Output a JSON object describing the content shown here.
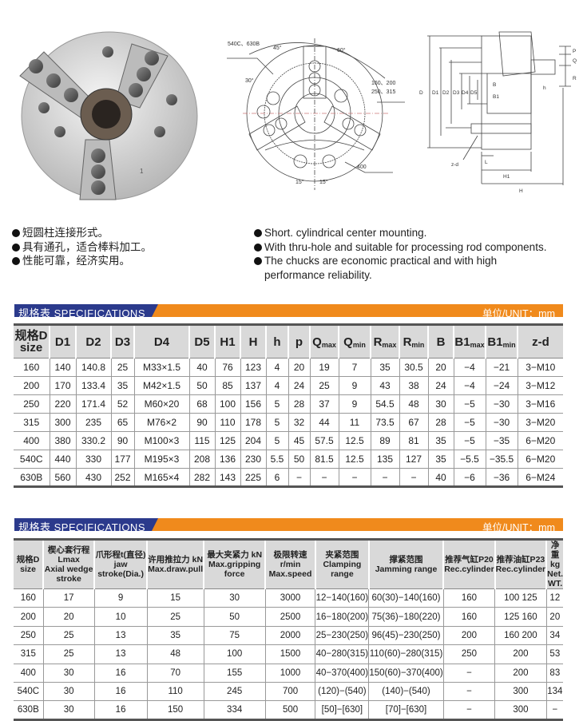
{
  "photo": {
    "engraving": "1"
  },
  "front_drawing": {
    "labels": [
      "540C、630B",
      "45°",
      "60°",
      "30°",
      "160、200",
      "250、315",
      "400",
      "15°",
      "15°"
    ]
  },
  "side_drawing": {
    "labels": [
      "D",
      "D1",
      "D2",
      "D3",
      "D4",
      "D5",
      "B",
      "B1",
      "P",
      "Q",
      "R",
      "h",
      "L",
      "z-d",
      "H1",
      "H"
    ]
  },
  "features_cn": [
    "短圆柱连接形式。",
    "具有通孔，适合棒料加工。",
    "性能可靠，经济实用。"
  ],
  "features_en": [
    "Short. cylindrical center mounting.",
    "With thru-hole and suitable for processing rod components.",
    "The chucks are economic practical and with high",
    "performance reliability."
  ],
  "section1": {
    "title": "规格表  SPECIFICATIONS",
    "unit": "单位/UNIT：mm",
    "headers": [
      {
        "main": "规格D",
        "second": "size"
      },
      {
        "main": "D1"
      },
      {
        "main": "D2"
      },
      {
        "main": "D3"
      },
      {
        "main": "D4"
      },
      {
        "main": "D5"
      },
      {
        "main": "H1"
      },
      {
        "main": "H"
      },
      {
        "main": "h"
      },
      {
        "main": "p"
      },
      {
        "main": "Q",
        "sub": "max"
      },
      {
        "main": "Q",
        "sub": "min"
      },
      {
        "main": "R",
        "sub": "max"
      },
      {
        "main": "R",
        "sub": "min"
      },
      {
        "main": "B"
      },
      {
        "main": "B1",
        "sub": "max"
      },
      {
        "main": "B1",
        "sub": "min"
      },
      {
        "main": "z-d"
      }
    ],
    "rows": [
      [
        "160",
        "140",
        "140.8",
        "25",
        "M33×1.5",
        "40",
        "76",
        "123",
        "4",
        "20",
        "19",
        "7",
        "35",
        "30.5",
        "20",
        "−4",
        "−21",
        "3−M10"
      ],
      [
        "200",
        "170",
        "133.4",
        "35",
        "M42×1.5",
        "50",
        "85",
        "137",
        "4",
        "24",
        "25",
        "9",
        "43",
        "38",
        "24",
        "−4",
        "−24",
        "3−M12"
      ],
      [
        "250",
        "220",
        "171.4",
        "52",
        "M60×20",
        "68",
        "100",
        "156",
        "5",
        "28",
        "37",
        "9",
        "54.5",
        "48",
        "30",
        "−5",
        "−30",
        "3−M16"
      ],
      [
        "315",
        "300",
        "235",
        "65",
        "M76×2",
        "90",
        "110",
        "178",
        "5",
        "32",
        "44",
        "11",
        "73.5",
        "67",
        "28",
        "−5",
        "−30",
        "3−M20"
      ],
      [
        "400",
        "380",
        "330.2",
        "90",
        "M100×3",
        "115",
        "125",
        "204",
        "5",
        "45",
        "57.5",
        "12.5",
        "89",
        "81",
        "35",
        "−5",
        "−35",
        "6−M20"
      ],
      [
        "540C",
        "440",
        "330",
        "177",
        "M195×3",
        "208",
        "136",
        "230",
        "5.5",
        "50",
        "81.5",
        "12.5",
        "135",
        "127",
        "35",
        "−5.5",
        "−35.5",
        "6−M20"
      ],
      [
        "630B",
        "560",
        "430",
        "252",
        "M165×4",
        "282",
        "143",
        "225",
        "6",
        "−",
        "−",
        "−",
        "−",
        "−",
        "40",
        "−6",
        "−36",
        "6−M24"
      ]
    ]
  },
  "section2": {
    "title": "规格表  SPECIFICATIONS",
    "unit": "单位/UNIT：mm",
    "headers": [
      {
        "main": "规格D",
        "second": "size"
      },
      {
        "main": "楔心套行程Lmax",
        "second": "Axial wedge stroke"
      },
      {
        "main": "爪形程t(直径)",
        "second": "jaw stroke(Dia.)"
      },
      {
        "main": "许用推拉力 kN",
        "second": "Max.draw.pull"
      },
      {
        "main": "最大夹紧力 kN",
        "second": "Max.gripping force"
      },
      {
        "main": "极限转速 r/min",
        "second": "Max.speed"
      },
      {
        "main": "夹紧范围",
        "second": "Clamping range"
      },
      {
        "main": "撑紧范围",
        "second": "Jamming range"
      },
      {
        "main": "推荐气缸P20",
        "second": "Rec.cylinder"
      },
      {
        "main": "推荐油缸P23",
        "second": "Rec.cylinder"
      },
      {
        "main": "净重 kg",
        "second": "Net. WT."
      }
    ],
    "rows": [
      [
        "160",
        "17",
        "9",
        "15",
        "30",
        "3000",
        "12−140(160)",
        "60(30)−140(160)",
        "160",
        "100  125",
        "12"
      ],
      [
        "200",
        "20",
        "10",
        "25",
        "50",
        "2500",
        "16−180(200)",
        "75(36)−180(220)",
        "160",
        "125  160",
        "20"
      ],
      [
        "250",
        "25",
        "13",
        "35",
        "75",
        "2000",
        "25−230(250)",
        "96(45)−230(250)",
        "200",
        "160  200",
        "34"
      ],
      [
        "315",
        "25",
        "13",
        "48",
        "100",
        "1500",
        "40−280(315)",
        "110(60)−280(315)",
        "250",
        "200",
        "53"
      ],
      [
        "400",
        "30",
        "16",
        "70",
        "155",
        "1000",
        "40−370(400)",
        "150(60)−370(400)",
        "−",
        "200",
        "83"
      ],
      [
        "540C",
        "30",
        "16",
        "110",
        "245",
        "700",
        "(120)−(540)",
        "(140)−(540)",
        "−",
        "300",
        "134"
      ],
      [
        "630B",
        "30",
        "16",
        "150",
        "334",
        "500",
        "[50]−[630]",
        "[70]−[630]",
        "−",
        "300",
        "−"
      ]
    ]
  },
  "colors": {
    "orange": "#f08a1c",
    "navy": "#2b3a8c",
    "header_gray": "#d9d9d9"
  }
}
